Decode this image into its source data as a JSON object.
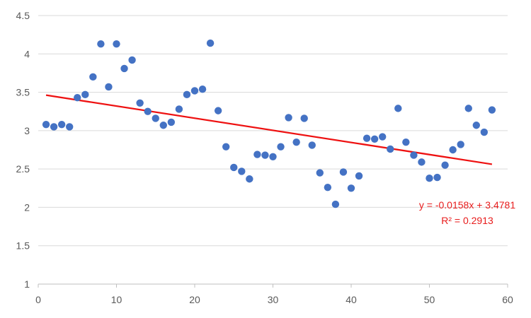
{
  "chart_data": {
    "type": "scatter",
    "xlim": [
      0,
      60
    ],
    "ylim": [
      1,
      4.5
    ],
    "x_ticks": [
      0,
      10,
      20,
      30,
      40,
      50,
      60
    ],
    "y_ticks": [
      1,
      1.5,
      2,
      2.5,
      3,
      3.5,
      4,
      4.5
    ],
    "x_tick_labels": [
      "0",
      "10",
      "20",
      "30",
      "40",
      "50",
      "60"
    ],
    "y_tick_labels": [
      "1",
      "1.5",
      "2",
      "2.5",
      "3",
      "3.5",
      "4",
      "4.5"
    ],
    "grid": {
      "horizontal": true,
      "vertical": false
    },
    "legend": "none",
    "colors": {
      "points": "#4472c4",
      "trendline": "#ee1111",
      "grid": "#d9d9d9",
      "axis": "#bfbfbf",
      "annotation": "#e81c1c"
    },
    "series": [
      {
        "x": [
          1,
          2,
          3,
          4,
          5,
          6,
          7,
          8,
          9,
          10,
          11,
          12,
          13,
          14,
          15,
          16,
          17,
          18,
          19,
          20,
          21,
          22,
          23,
          24,
          25,
          26,
          27,
          28,
          29,
          30,
          31,
          32,
          33,
          34,
          35,
          36,
          37,
          38,
          39,
          40,
          41,
          42,
          43,
          44,
          45,
          46,
          47,
          48,
          49,
          50,
          51,
          52,
          53,
          54,
          55,
          56,
          57,
          58
        ],
        "y": [
          3.08,
          3.05,
          3.08,
          3.05,
          3.43,
          3.47,
          3.7,
          4.13,
          3.57,
          4.13,
          3.81,
          3.92,
          3.36,
          3.25,
          3.16,
          3.07,
          3.11,
          3.28,
          3.47,
          3.52,
          3.54,
          4.14,
          3.26,
          2.79,
          2.52,
          2.47,
          2.37,
          2.69,
          2.68,
          2.66,
          2.79,
          3.17,
          2.85,
          3.16,
          2.81,
          2.45,
          2.26,
          2.04,
          2.46,
          2.25,
          2.41,
          2.9,
          2.89,
          2.92,
          2.76,
          3.29,
          2.85,
          2.68,
          2.59,
          2.38,
          2.39,
          2.55,
          2.75,
          2.82,
          3.29,
          3.07,
          2.98,
          3.27
        ]
      }
    ],
    "trendline": {
      "type": "linear",
      "slope": -0.0158,
      "intercept": 3.4781,
      "x_start": 1,
      "x_end": 58
    },
    "annotations": {
      "equation": "y = -0.0158x + 3.4781",
      "r_squared": "R² = 0.2913"
    }
  }
}
